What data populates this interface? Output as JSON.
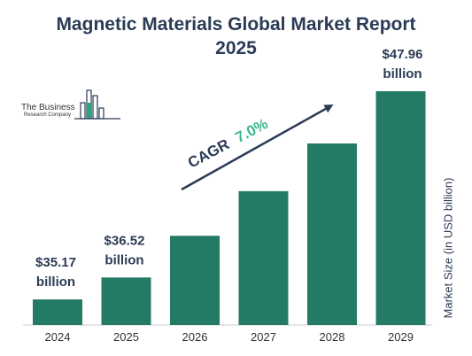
{
  "title_line1": "Magnetic Materials Global Market Report",
  "title_line2": "2025",
  "logo": {
    "line1": "The Business",
    "line2": "Research Company"
  },
  "colors": {
    "bar": "#237a65",
    "title": "#2b3b55",
    "cagr_value": "#3bb88f",
    "logo_accent": "#2aa57d"
  },
  "chart_data": {
    "type": "bar",
    "title": "Magnetic Materials Global Market Report 2025",
    "categories": [
      "2024",
      "2025",
      "2026",
      "2027",
      "2028",
      "2029"
    ],
    "values": [
      35.17,
      36.52,
      39.08,
      41.82,
      44.75,
      47.96
    ],
    "value_labels": [
      "$35.17 billion",
      "$36.52 billion",
      "",
      "",
      "",
      "$47.96 billion"
    ],
    "ylabel": "Market Size (in USD billion)",
    "xlabel": "",
    "annotation": {
      "prefix": "CAGR",
      "value": "7.0%"
    },
    "grid": false
  }
}
